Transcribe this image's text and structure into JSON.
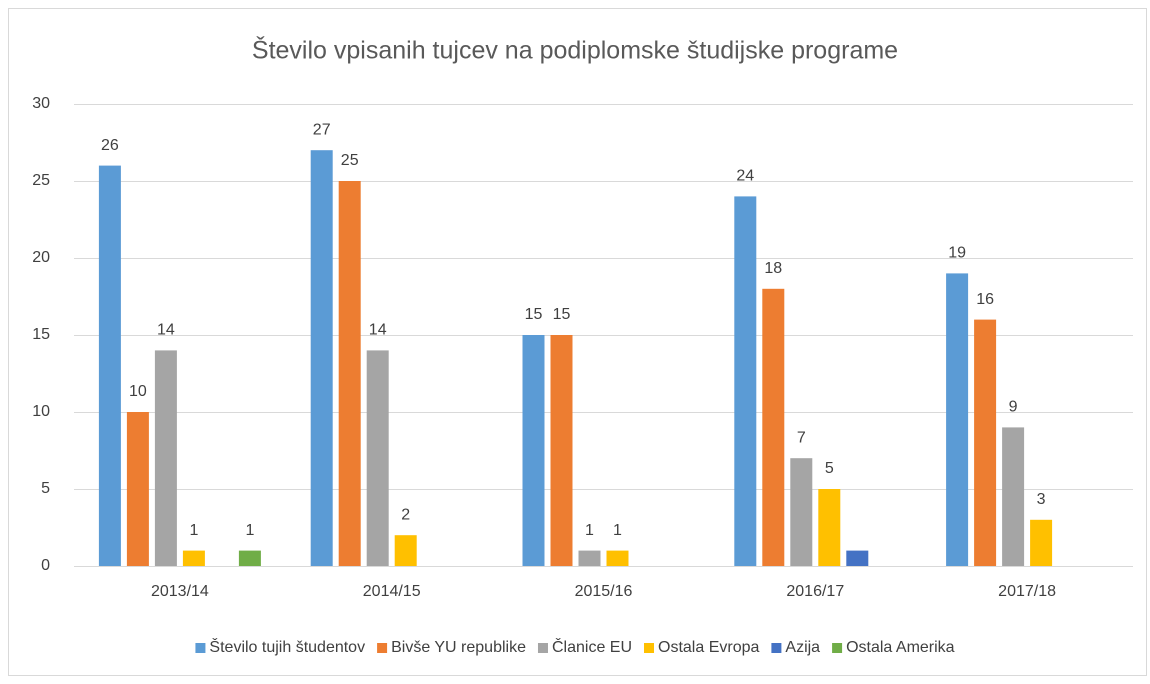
{
  "chart_data": {
    "type": "bar",
    "title": "Število vpisanih tujcev na podiplomske študijske programe",
    "categories": [
      "2013/14",
      "2014/15",
      "2015/16",
      "2016/17",
      "2017/18"
    ],
    "series": [
      {
        "name": "Število tujih študentov",
        "color": "#5b9bd5",
        "values": [
          26,
          27,
          15,
          24,
          19
        ],
        "data_labels": true
      },
      {
        "name": "Bivše YU republike",
        "color": "#ed7d31",
        "values": [
          10,
          25,
          15,
          18,
          16
        ],
        "data_labels": true
      },
      {
        "name": "Članice EU",
        "color": "#a5a5a5",
        "values": [
          14,
          14,
          1,
          7,
          9
        ],
        "data_labels": true
      },
      {
        "name": "Ostala Evropa",
        "color": "#ffc000",
        "values": [
          1,
          2,
          1,
          5,
          3
        ],
        "data_labels": true
      },
      {
        "name": "Azija",
        "color": "#4472c4",
        "values": [
          null,
          null,
          null,
          1,
          null
        ],
        "data_labels": false
      },
      {
        "name": "Ostala Amerika",
        "color": "#70ad47",
        "values": [
          1,
          null,
          null,
          null,
          null
        ],
        "data_labels": true
      }
    ],
    "ylim": [
      0,
      30
    ],
    "yticks": [
      0,
      5,
      10,
      15,
      20,
      25,
      30
    ],
    "grid": true,
    "legend": "bottom"
  }
}
